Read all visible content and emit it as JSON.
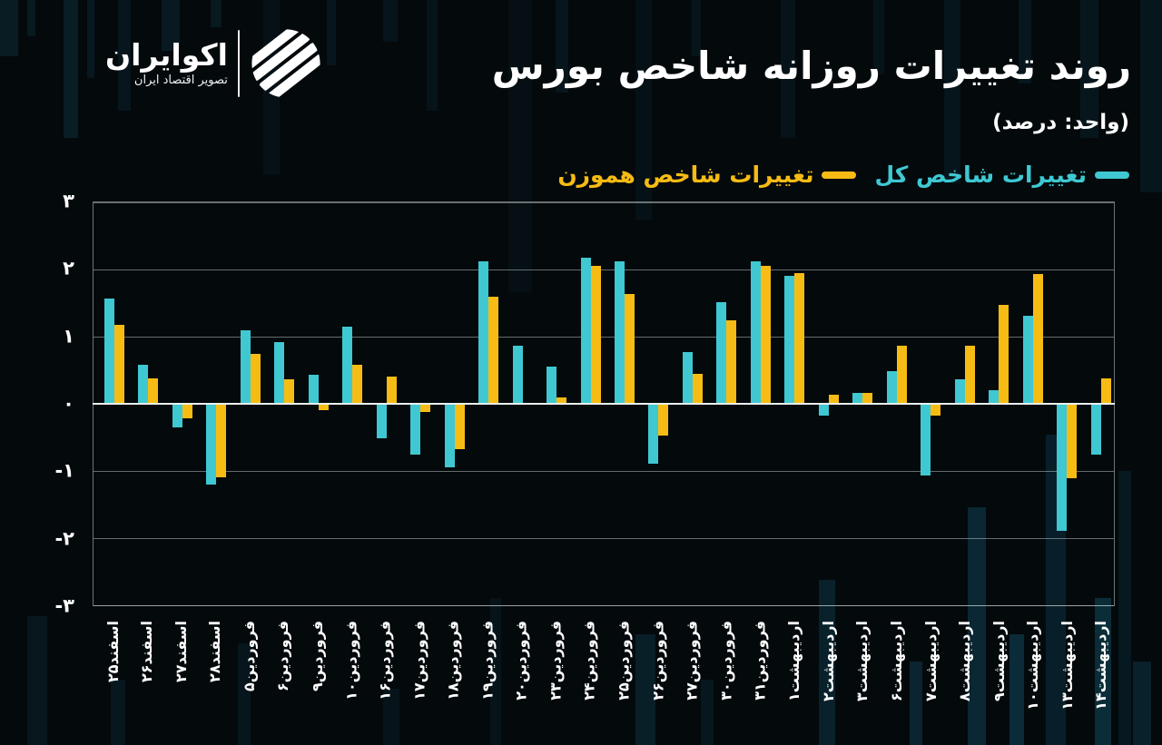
{
  "header": {
    "title": "روند تغییرات روزانه شاخص بورس",
    "subtitle": "(واحد: درصد)"
  },
  "logo": {
    "name": "اکوایران",
    "tagline": "تصویر اقتصاد ایران"
  },
  "legend": [
    {
      "label": "تغییرات شاخص کل",
      "color": "#3fc8d2"
    },
    {
      "label": "تغییرات شاخص هموزن",
      "color": "#f7bc14"
    }
  ],
  "colors": {
    "background": "#04090c",
    "grid": "#c3d0d0",
    "zero_line": "#eaf0f0",
    "text": "#ffffff",
    "total_index": "#3fc8d2",
    "equal_weight_index": "#f7bc14"
  },
  "chart_data": {
    "type": "bar",
    "title": "روند تغییرات روزانه شاخص بورس",
    "unit_note": "(واحد: درصد)",
    "categories": [
      "اسفند۲۵",
      "اسفند۲۶",
      "اسفند۲۷",
      "اسفند۲۸",
      "فروردین۵",
      "فروردین۶",
      "فروردین۹",
      "فروردین۱۰",
      "فروردین۱۶",
      "فروردین۱۷",
      "فروردین۱۸",
      "فروردین۱۹",
      "فروردین۲۰",
      "فروردین۲۳",
      "فروردین۲۴",
      "فروردین۲۵",
      "فروردین۲۶",
      "فروردین۲۷",
      "فروردین۳۰",
      "فروردین۳۱",
      "اردیبهشت۱",
      "اردیبهشت۲",
      "اردیبهشت۳",
      "اردیبهشت۶",
      "اردیبهشت۷",
      "اردیبهشت۸",
      "اردیبهشت۹",
      "اردیبهشت۱۰",
      "اردیبهشت۱۳",
      "اردیبهشت۱۴"
    ],
    "series": [
      {
        "name": "تغییرات شاخص کل",
        "color": "#3fc8d2",
        "values": [
          1.57,
          0.58,
          -0.35,
          -1.2,
          1.1,
          0.92,
          0.43,
          1.15,
          -0.52,
          -0.75,
          -0.94,
          2.12,
          0.86,
          0.55,
          2.18,
          2.12,
          -0.89,
          0.77,
          1.51,
          2.12,
          1.91,
          -0.17,
          0.16,
          0.48,
          -1.07,
          0.37,
          0.2,
          1.31,
          -1.89,
          -0.75
        ]
      },
      {
        "name": "تغییرات شاخص هموزن",
        "color": "#f7bc14",
        "values": [
          1.17,
          0.38,
          -0.22,
          -1.1,
          0.74,
          0.36,
          -0.09,
          0.58,
          0.4,
          -0.12,
          -0.68,
          1.6,
          0.02,
          0.09,
          2.05,
          1.64,
          -0.47,
          0.45,
          1.24,
          2.05,
          1.95,
          0.14,
          0.16,
          0.87,
          -0.17,
          0.86,
          1.47,
          1.93,
          -1.11,
          0.38
        ]
      }
    ],
    "ylim": [
      -3,
      3
    ],
    "ytick_values": [
      3,
      2,
      1,
      0,
      -1,
      -2,
      -3
    ],
    "ytick_labels": [
      "۳",
      "۲",
      "۱",
      "۰",
      "-۱",
      "-۲",
      "-۳"
    ],
    "grid": true,
    "legend_position": "top-right",
    "xlabel": "",
    "ylabel": ""
  }
}
